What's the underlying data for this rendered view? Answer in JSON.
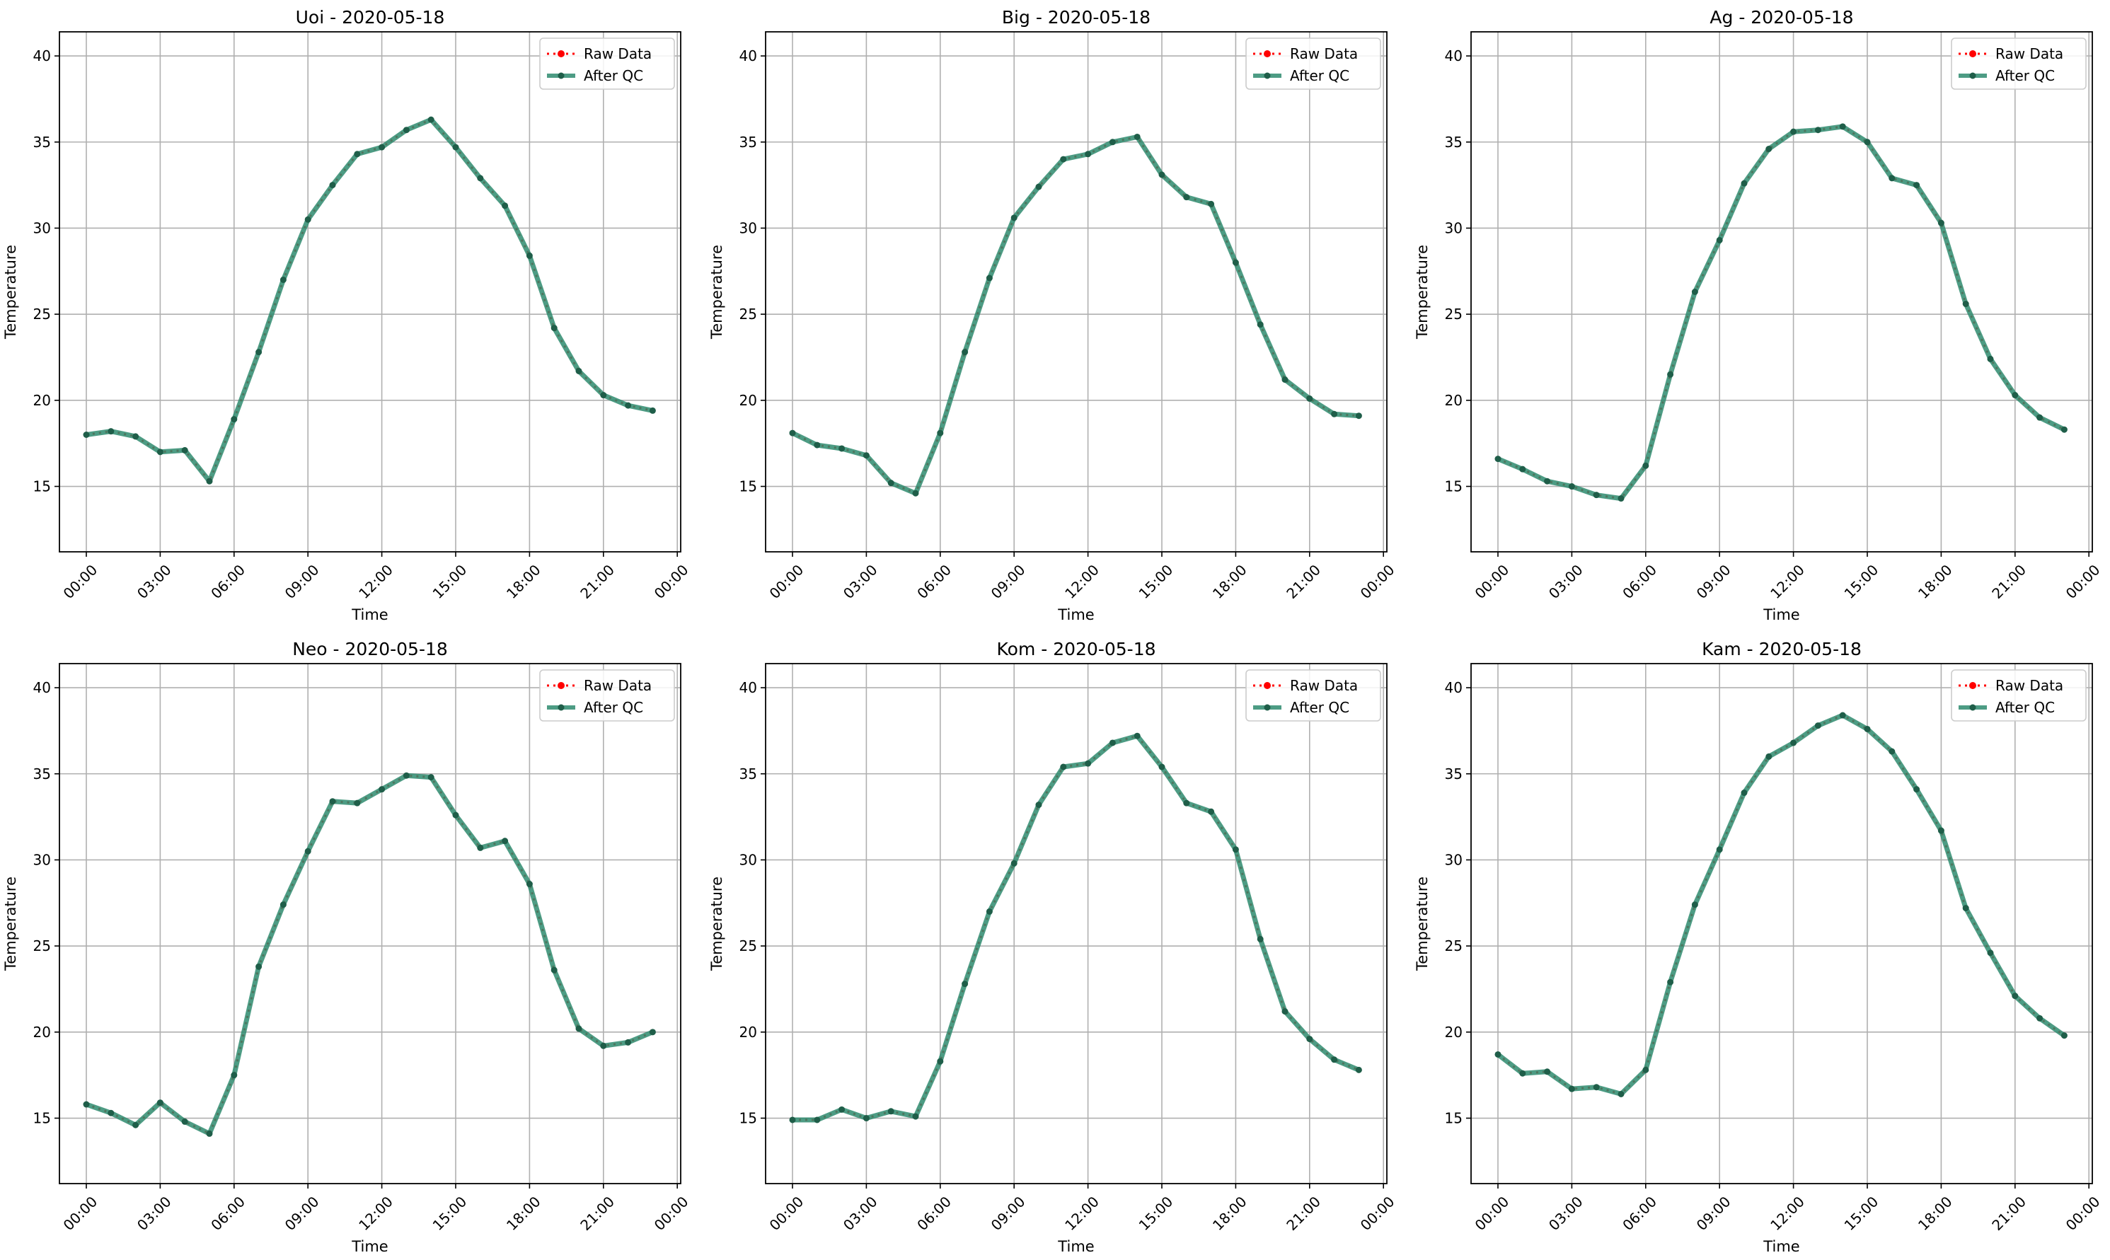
{
  "figure": {
    "background": "#ffffff",
    "raw_color": "#ff0000",
    "qc_color": "#2e8b6e"
  },
  "chart_data": [
    {
      "type": "line",
      "title": "Uoi - 2020-05-18",
      "xlabel": "Time",
      "ylabel": "Temperature",
      "x": [
        "00:00",
        "01:00",
        "02:00",
        "03:00",
        "04:00",
        "05:00",
        "06:00",
        "07:00",
        "08:00",
        "09:00",
        "10:00",
        "11:00",
        "12:00",
        "13:00",
        "14:00",
        "15:00",
        "16:00",
        "17:00",
        "18:00",
        "19:00",
        "20:00",
        "21:00",
        "22:00",
        "23:00"
      ],
      "xticks": [
        "00:00",
        "03:00",
        "06:00",
        "09:00",
        "12:00",
        "15:00",
        "18:00",
        "21:00",
        "00:00"
      ],
      "ylim": [
        11.2,
        41.4
      ],
      "yticks": [
        15,
        20,
        25,
        30,
        35,
        40
      ],
      "grid": true,
      "legend_position": "top-right",
      "series": [
        {
          "name": "Raw Data",
          "values": [
            18.0,
            18.2,
            17.9,
            17.0,
            17.1,
            15.3,
            18.9,
            22.8,
            27.0,
            30.5,
            32.5,
            34.3,
            34.7,
            35.7,
            36.3,
            34.7,
            32.9,
            31.3,
            28.4,
            24.2,
            21.7,
            20.3,
            19.7,
            19.4
          ]
        },
        {
          "name": "After QC",
          "values": [
            18.0,
            18.2,
            17.9,
            17.0,
            17.1,
            15.3,
            18.9,
            22.8,
            27.0,
            30.5,
            32.5,
            34.3,
            34.7,
            35.7,
            36.3,
            34.7,
            32.9,
            31.3,
            28.4,
            24.2,
            21.7,
            20.3,
            19.7,
            19.4
          ]
        }
      ]
    },
    {
      "type": "line",
      "title": "Big - 2020-05-18",
      "xlabel": "Time",
      "ylabel": "Temperature",
      "x": [
        "00:00",
        "01:00",
        "02:00",
        "03:00",
        "04:00",
        "05:00",
        "06:00",
        "07:00",
        "08:00",
        "09:00",
        "10:00",
        "11:00",
        "12:00",
        "13:00",
        "14:00",
        "15:00",
        "16:00",
        "17:00",
        "18:00",
        "19:00",
        "20:00",
        "21:00",
        "22:00",
        "23:00"
      ],
      "xticks": [
        "00:00",
        "03:00",
        "06:00",
        "09:00",
        "12:00",
        "15:00",
        "18:00",
        "21:00",
        "00:00"
      ],
      "ylim": [
        11.2,
        41.4
      ],
      "yticks": [
        15,
        20,
        25,
        30,
        35,
        40
      ],
      "grid": true,
      "legend_position": "top-right",
      "series": [
        {
          "name": "Raw Data",
          "values": [
            18.1,
            17.4,
            17.2,
            16.8,
            15.2,
            14.6,
            18.1,
            22.8,
            27.1,
            30.6,
            32.4,
            34.0,
            34.3,
            35.0,
            35.3,
            33.1,
            31.8,
            31.4,
            28.0,
            24.4,
            21.2,
            20.1,
            19.2,
            19.1
          ]
        },
        {
          "name": "After QC",
          "values": [
            18.1,
            17.4,
            17.2,
            16.8,
            15.2,
            14.6,
            18.1,
            22.8,
            27.1,
            30.6,
            32.4,
            34.0,
            34.3,
            35.0,
            35.3,
            33.1,
            31.8,
            31.4,
            28.0,
            24.4,
            21.2,
            20.1,
            19.2,
            19.1
          ]
        }
      ]
    },
    {
      "type": "line",
      "title": "Ag - 2020-05-18",
      "xlabel": "Time",
      "ylabel": "Temperature",
      "x": [
        "00:00",
        "01:00",
        "02:00",
        "03:00",
        "04:00",
        "05:00",
        "06:00",
        "07:00",
        "08:00",
        "09:00",
        "10:00",
        "11:00",
        "12:00",
        "13:00",
        "14:00",
        "15:00",
        "16:00",
        "17:00",
        "18:00",
        "19:00",
        "20:00",
        "21:00",
        "22:00",
        "23:00"
      ],
      "xticks": [
        "00:00",
        "03:00",
        "06:00",
        "09:00",
        "12:00",
        "15:00",
        "18:00",
        "21:00",
        "00:00"
      ],
      "ylim": [
        11.2,
        41.4
      ],
      "yticks": [
        15,
        20,
        25,
        30,
        35,
        40
      ],
      "grid": true,
      "legend_position": "top-right",
      "series": [
        {
          "name": "Raw Data",
          "values": [
            16.6,
            16.0,
            15.3,
            15.0,
            14.5,
            14.3,
            16.2,
            21.5,
            26.3,
            29.3,
            32.6,
            34.6,
            35.6,
            35.7,
            35.9,
            35.0,
            32.9,
            32.5,
            30.3,
            25.6,
            22.4,
            20.3,
            19.0,
            18.3
          ]
        },
        {
          "name": "After QC",
          "values": [
            16.6,
            16.0,
            15.3,
            15.0,
            14.5,
            14.3,
            16.2,
            21.5,
            26.3,
            29.3,
            32.6,
            34.6,
            35.6,
            35.7,
            35.9,
            35.0,
            32.9,
            32.5,
            30.3,
            25.6,
            22.4,
            20.3,
            19.0,
            18.3
          ]
        }
      ]
    },
    {
      "type": "line",
      "title": "Neo - 2020-05-18",
      "xlabel": "Time",
      "ylabel": "Temperature",
      "x": [
        "00:00",
        "01:00",
        "02:00",
        "03:00",
        "04:00",
        "05:00",
        "06:00",
        "07:00",
        "08:00",
        "09:00",
        "10:00",
        "11:00",
        "12:00",
        "13:00",
        "14:00",
        "15:00",
        "16:00",
        "17:00",
        "18:00",
        "19:00",
        "20:00",
        "21:00",
        "22:00",
        "23:00"
      ],
      "xticks": [
        "00:00",
        "03:00",
        "06:00",
        "09:00",
        "12:00",
        "15:00",
        "18:00",
        "21:00",
        "00:00"
      ],
      "ylim": [
        11.2,
        41.4
      ],
      "yticks": [
        15,
        20,
        25,
        30,
        35,
        40
      ],
      "grid": true,
      "legend_position": "top-right",
      "series": [
        {
          "name": "Raw Data",
          "values": [
            15.8,
            15.3,
            14.6,
            15.9,
            14.8,
            14.1,
            17.5,
            23.8,
            27.4,
            30.5,
            33.4,
            33.3,
            34.1,
            34.9,
            34.8,
            32.6,
            30.7,
            31.1,
            28.6,
            23.6,
            20.2,
            19.2,
            19.4,
            20.0
          ]
        },
        {
          "name": "After QC",
          "values": [
            15.8,
            15.3,
            14.6,
            15.9,
            14.8,
            14.1,
            17.5,
            23.8,
            27.4,
            30.5,
            33.4,
            33.3,
            34.1,
            34.9,
            34.8,
            32.6,
            30.7,
            31.1,
            28.6,
            23.6,
            20.2,
            19.2,
            19.4,
            20.0
          ]
        }
      ]
    },
    {
      "type": "line",
      "title": "Kom - 2020-05-18",
      "xlabel": "Time",
      "ylabel": "Temperature",
      "x": [
        "00:00",
        "01:00",
        "02:00",
        "03:00",
        "04:00",
        "05:00",
        "06:00",
        "07:00",
        "08:00",
        "09:00",
        "10:00",
        "11:00",
        "12:00",
        "13:00",
        "14:00",
        "15:00",
        "16:00",
        "17:00",
        "18:00",
        "19:00",
        "20:00",
        "21:00",
        "22:00",
        "23:00"
      ],
      "xticks": [
        "00:00",
        "03:00",
        "06:00",
        "09:00",
        "12:00",
        "15:00",
        "18:00",
        "21:00",
        "00:00"
      ],
      "ylim": [
        11.2,
        41.4
      ],
      "yticks": [
        15,
        20,
        25,
        30,
        35,
        40
      ],
      "grid": true,
      "legend_position": "top-right",
      "series": [
        {
          "name": "Raw Data",
          "values": [
            14.9,
            14.9,
            15.5,
            15.0,
            15.4,
            15.1,
            18.3,
            22.8,
            27.0,
            29.8,
            33.2,
            35.4,
            35.6,
            36.8,
            37.2,
            35.4,
            33.3,
            32.8,
            30.6,
            25.4,
            21.2,
            19.6,
            18.4,
            17.8
          ]
        },
        {
          "name": "After QC",
          "values": [
            14.9,
            14.9,
            15.5,
            15.0,
            15.4,
            15.1,
            18.3,
            22.8,
            27.0,
            29.8,
            33.2,
            35.4,
            35.6,
            36.8,
            37.2,
            35.4,
            33.3,
            32.8,
            30.6,
            25.4,
            21.2,
            19.6,
            18.4,
            17.8
          ]
        }
      ]
    },
    {
      "type": "line",
      "title": "Kam - 2020-05-18",
      "xlabel": "Time",
      "ylabel": "Temperature",
      "x": [
        "00:00",
        "01:00",
        "02:00",
        "03:00",
        "04:00",
        "05:00",
        "06:00",
        "07:00",
        "08:00",
        "09:00",
        "10:00",
        "11:00",
        "12:00",
        "13:00",
        "14:00",
        "15:00",
        "16:00",
        "17:00",
        "18:00",
        "19:00",
        "20:00",
        "21:00",
        "22:00",
        "23:00"
      ],
      "xticks": [
        "00:00",
        "03:00",
        "06:00",
        "09:00",
        "12:00",
        "15:00",
        "18:00",
        "21:00",
        "00:00"
      ],
      "ylim": [
        11.2,
        41.4
      ],
      "yticks": [
        15,
        20,
        25,
        30,
        35,
        40
      ],
      "grid": true,
      "legend_position": "top-right",
      "series": [
        {
          "name": "Raw Data",
          "values": [
            18.7,
            17.6,
            17.7,
            16.7,
            16.8,
            16.4,
            17.8,
            22.9,
            27.4,
            30.6,
            33.9,
            36.0,
            36.8,
            37.8,
            38.4,
            37.6,
            36.3,
            34.1,
            31.7,
            27.2,
            24.6,
            22.1,
            20.8,
            19.8
          ]
        },
        {
          "name": "After QC",
          "values": [
            18.7,
            17.6,
            17.7,
            16.7,
            16.8,
            16.4,
            17.8,
            22.9,
            27.4,
            30.6,
            33.9,
            36.0,
            36.8,
            37.8,
            38.4,
            37.6,
            36.3,
            34.1,
            31.7,
            27.2,
            24.6,
            22.1,
            20.8,
            19.8
          ]
        }
      ]
    }
  ]
}
